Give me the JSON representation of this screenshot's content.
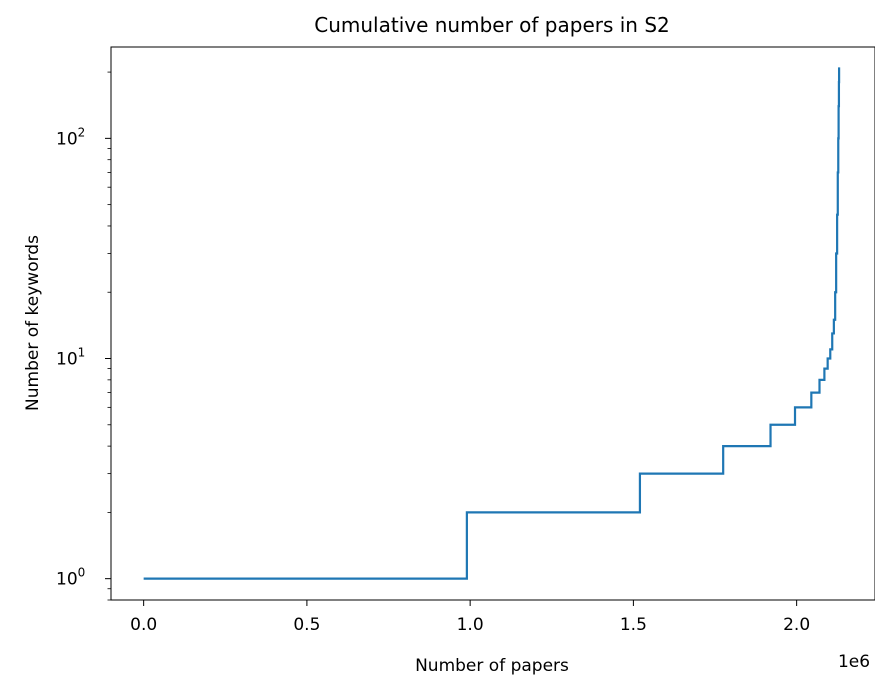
{
  "chart_data": {
    "type": "line",
    "title": "Cumulative number of papers in S2",
    "xlabel": "Number of papers",
    "ylabel": "Number of keywords",
    "x_tick_labels": [
      "0.0",
      "0.5",
      "1.0",
      "1.5",
      "2.0"
    ],
    "x_ticks": [
      0,
      500000,
      1000000,
      1500000,
      2000000
    ],
    "x_offset_label": "1e6",
    "xlim": [
      -100000,
      2240000
    ],
    "ylim": [
      0.8,
      260
    ],
    "y_scale": "log",
    "y_ticks_major": [
      1,
      10,
      100
    ],
    "y_tick_labels": [
      {
        "base": "10",
        "exp": "0"
      },
      {
        "base": "10",
        "exp": "1"
      },
      {
        "base": "10",
        "exp": "2"
      }
    ],
    "grid": false,
    "line_color": "#1f77b4",
    "series": [
      {
        "style": "step",
        "x": [
          0,
          990000,
          990000,
          1520000,
          1520000,
          1775000,
          1775000,
          1920000,
          1920000,
          1995000,
          1995000,
          2045000,
          2045000,
          2070000,
          2070000,
          2085000,
          2085000,
          2095000,
          2095000,
          2103000,
          2103000,
          2109000,
          2109000,
          2114000,
          2114000,
          2118000,
          2118000,
          2121000,
          2121000,
          2124000,
          2124000,
          2126000,
          2126000,
          2127500,
          2127500,
          2128500,
          2128500,
          2129500,
          2129500,
          2130000,
          2130000
        ],
        "y": [
          1,
          1,
          2,
          2,
          3,
          3,
          4,
          4,
          5,
          5,
          6,
          6,
          7,
          7,
          8,
          8,
          9,
          9,
          10,
          10,
          11,
          11,
          13,
          13,
          15,
          15,
          20,
          20,
          30,
          30,
          45,
          45,
          70,
          70,
          100,
          100,
          140,
          140,
          180,
          180,
          210
        ]
      }
    ]
  }
}
